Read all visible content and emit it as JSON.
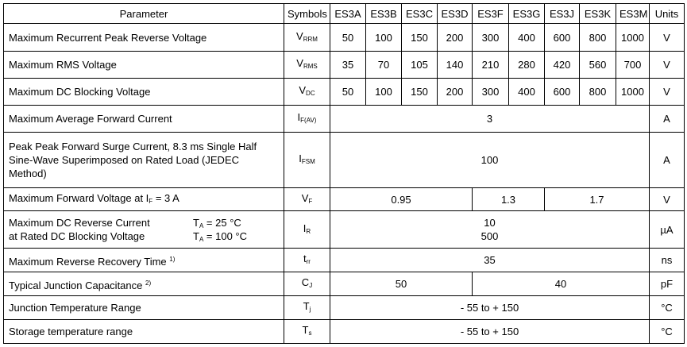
{
  "table": {
    "header": [
      "Parameter",
      "Symbols",
      "ES3A",
      "ES3B",
      "ES3C",
      "ES3D",
      "ES3F",
      "ES3G",
      "ES3J",
      "ES3K",
      "ES3M",
      "Units"
    ],
    "rows": [
      {
        "parameter": "Maximum Recurrent Peak Reverse Voltage",
        "symbol": "V",
        "symbol_sub": "RRM",
        "values": [
          50,
          100,
          150,
          200,
          300,
          400,
          600,
          800,
          1000
        ],
        "unit": "V"
      },
      {
        "parameter": "Maximum RMS Voltage",
        "symbol": "V",
        "symbol_sub": "RMS",
        "values": [
          35,
          70,
          105,
          140,
          210,
          280,
          420,
          560,
          700
        ],
        "unit": "V"
      },
      {
        "parameter": "Maximum DC Blocking Voltage",
        "symbol": "V",
        "symbol_sub": "DC",
        "values": [
          50,
          100,
          150,
          200,
          300,
          400,
          600,
          800,
          1000
        ],
        "unit": "V"
      },
      {
        "parameter": "Maximum Average Forward Current",
        "symbol": "I",
        "symbol_sub": "F(AV)",
        "values": [
          3
        ],
        "unit": "A"
      },
      {
        "parameter_lines": [
          "Peak Peak Forward Surge Current, 8.3 ms Single Half",
          "Sine-Wave Superimposed on Rated Load (JEDEC",
          "Method)"
        ],
        "symbol": "I",
        "symbol_sub": "FSM",
        "values": [
          100
        ],
        "unit": "A"
      },
      {
        "parameter_parts": [
          "Maximum Forward Voltage at I",
          "F",
          "= 3 A"
        ],
        "symbol": "V",
        "symbol_sub": "F",
        "values": [
          0.95,
          1.3,
          1.7
        ],
        "unit": "V"
      },
      {
        "parameter_lines": [
          "Maximum DC Reverse Current",
          "at Rated DC Blocking Voltage"
        ],
        "conditions": [
          {
            "symbol": "T",
            "sub": "A",
            "text": "= 25 °C"
          },
          {
            "symbol": "T",
            "sub": "A",
            "text": "= 100 °C"
          }
        ],
        "symbol": "I",
        "symbol_sub": "R",
        "values": [
          10,
          500
        ],
        "unit": "µA"
      },
      {
        "parameter": "Maximum Reverse Recovery Time",
        "note": "1)",
        "symbol": "t",
        "symbol_sub": "rr",
        "values": [
          35
        ],
        "unit": "ns"
      },
      {
        "parameter": "Typical Junction Capacitance",
        "note": "2)",
        "symbol": "C",
        "symbol_sub": "J",
        "values": [
          50,
          40
        ],
        "unit": "pF"
      },
      {
        "parameter": "Junction Temperature Range",
        "symbol": "T",
        "symbol_sub": "j",
        "values": [
          "- 55 to + 150"
        ],
        "unit": "°C"
      },
      {
        "parameter": "Storage temperature range",
        "symbol": "T",
        "symbol_sub": "s",
        "values": [
          "- 55 to + 150"
        ],
        "unit": "°C"
      }
    ]
  }
}
